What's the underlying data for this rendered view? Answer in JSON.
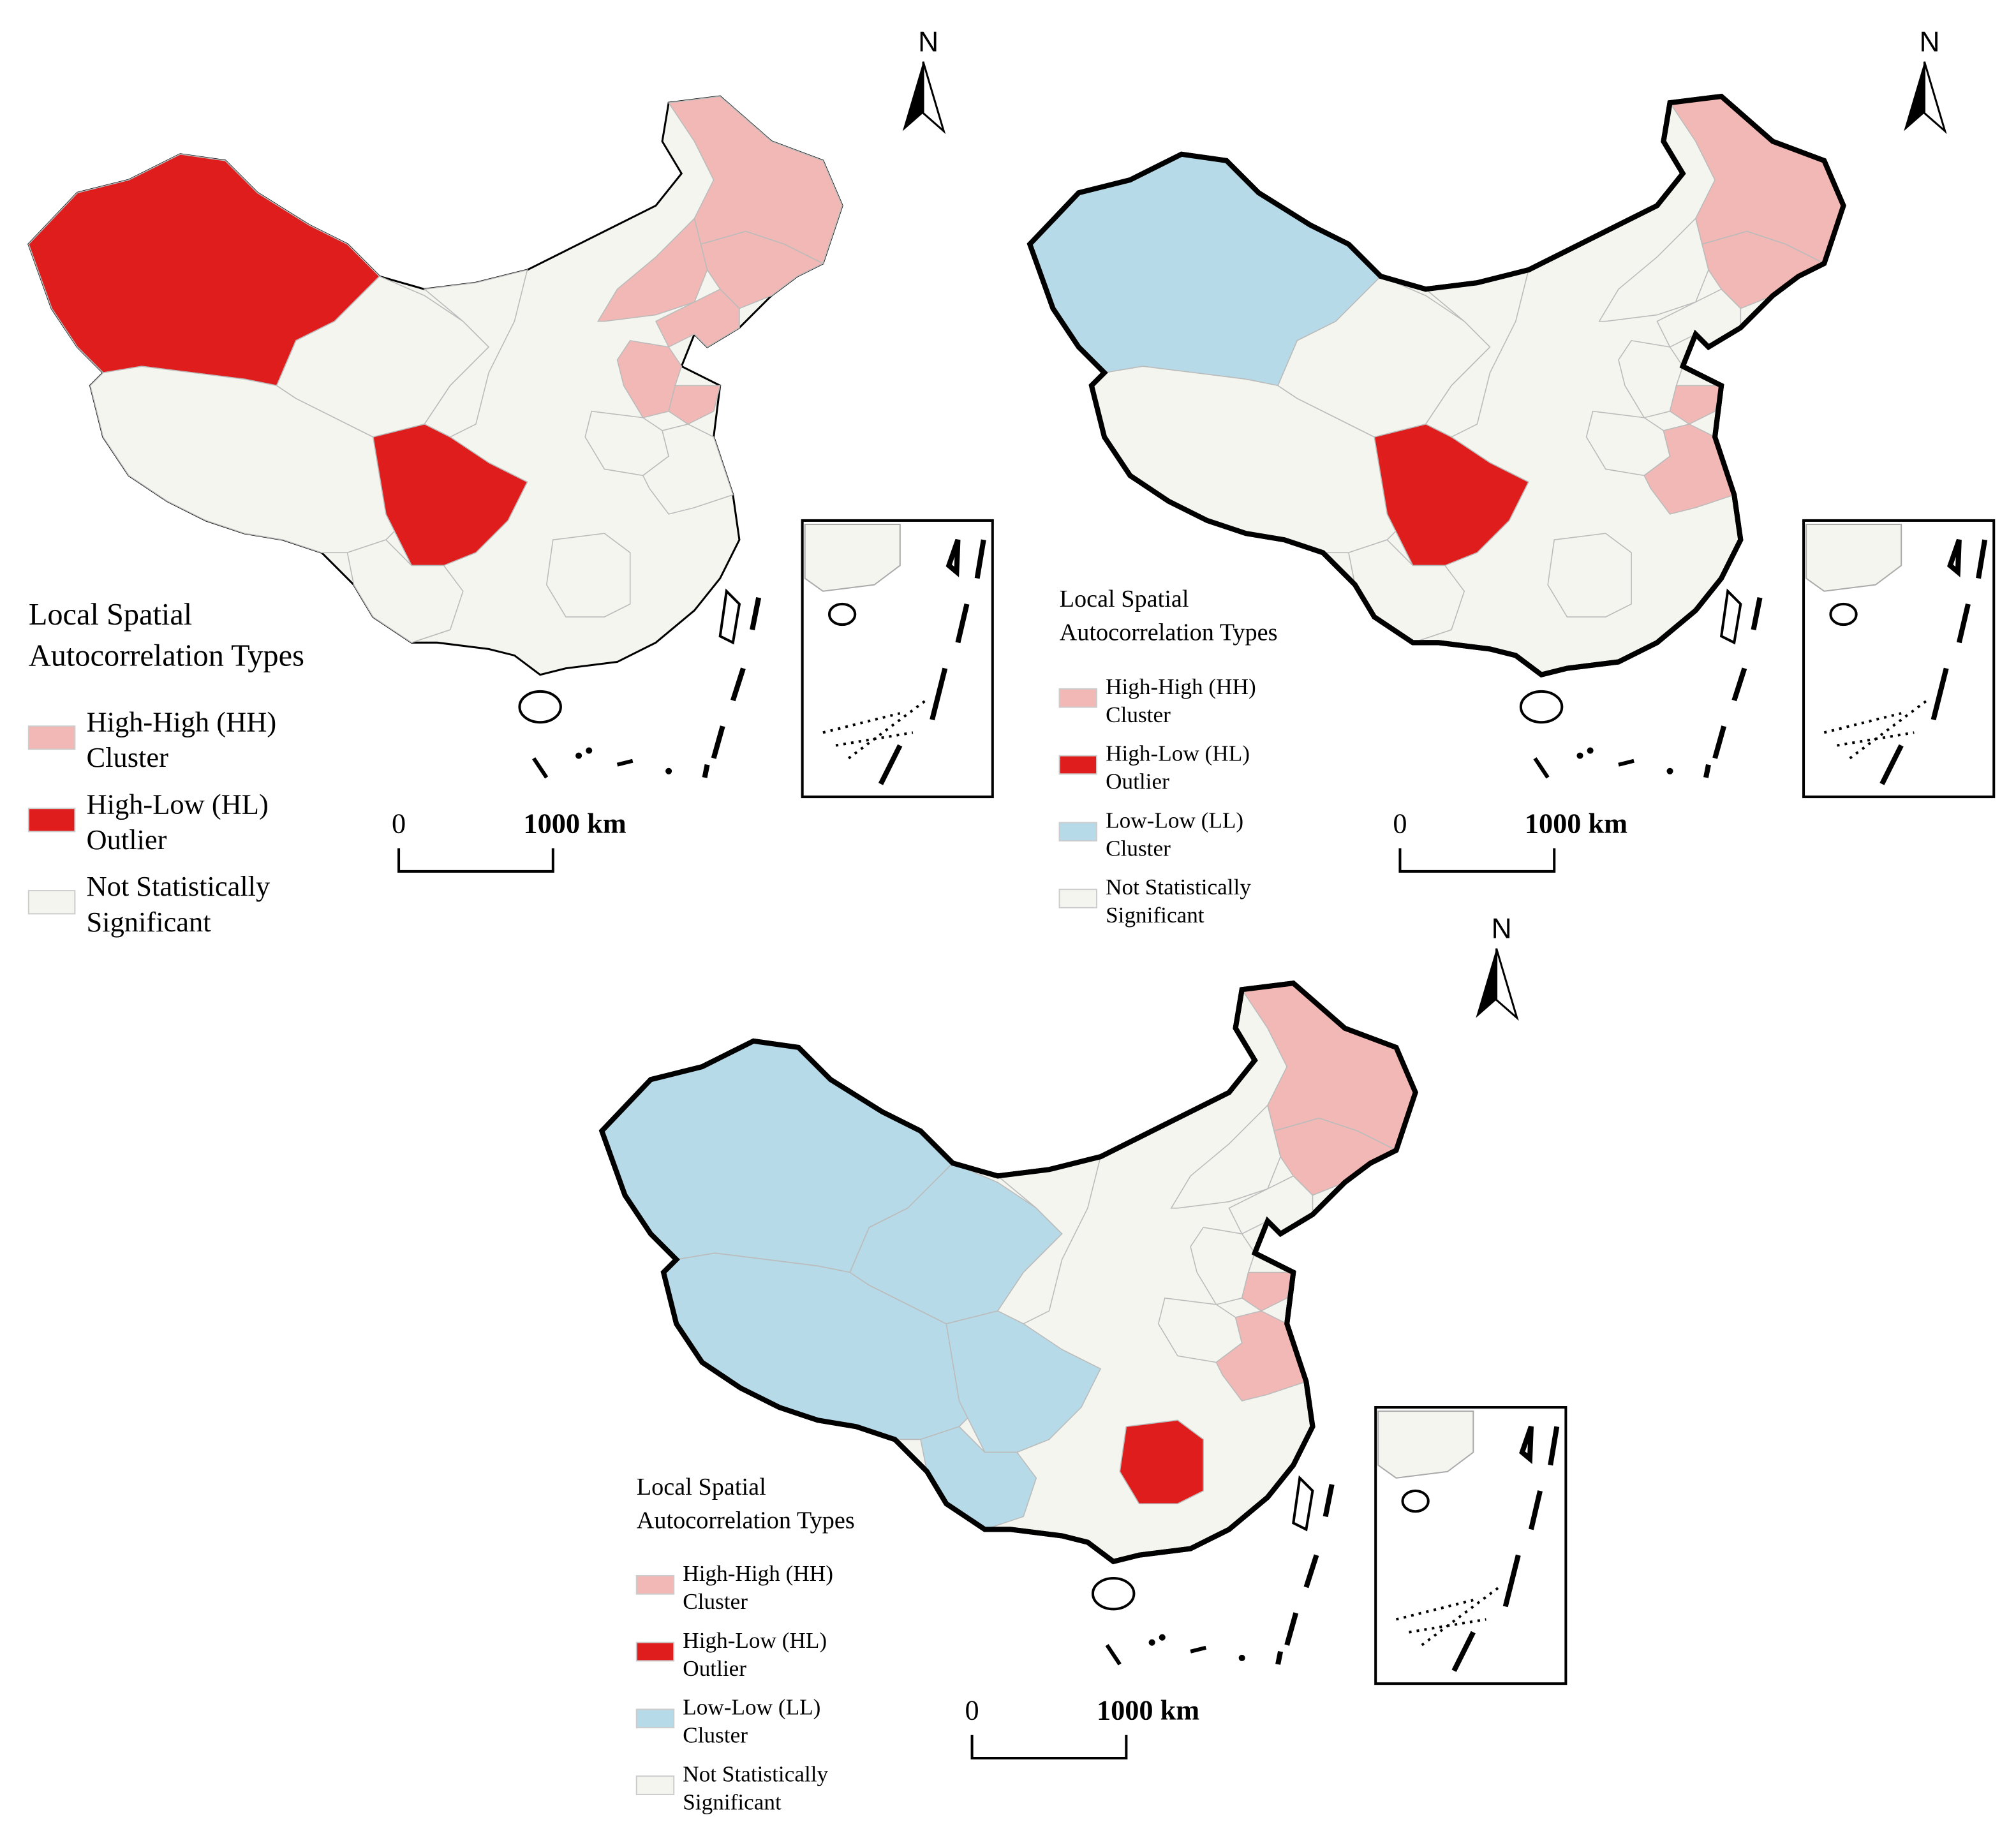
{
  "maps": [
    {
      "north": "N",
      "scale_labels": [
        "0",
        "1000 km"
      ],
      "legend_title": [
        "Local Spatial",
        "Autocorrelation Types"
      ],
      "legend": [
        {
          "label": [
            "High-High (HH)",
            "Cluster"
          ],
          "color": "#f2b8b5"
        },
        {
          "label": [
            "High-Low (HL)",
            "Outlier"
          ],
          "color": "#e01d1d"
        },
        {
          "label": [
            "Not Statistically",
            "Significant"
          ],
          "color": "#f5f5f0"
        }
      ]
    },
    {
      "north": "N",
      "scale_labels": [
        "0",
        "1000 km"
      ],
      "legend_title": [
        "Local Spatial",
        "Autocorrelation Types"
      ],
      "legend": [
        {
          "label": [
            "High-High (HH)",
            "Cluster"
          ],
          "color": "#f2b8b5"
        },
        {
          "label": [
            "High-Low (HL)",
            "Outlier"
          ],
          "color": "#e01d1d"
        },
        {
          "label": [
            "Low-Low (LL)",
            "Cluster"
          ],
          "color": "#b7dae8"
        },
        {
          "label": [
            "Not Statistically",
            "Significant"
          ],
          "color": "#f5f5f0"
        }
      ]
    },
    {
      "north": "N",
      "scale_labels": [
        "0",
        "1000 km"
      ],
      "legend_title": [
        "Local Spatial",
        "Autocorrelation Types"
      ],
      "legend": [
        {
          "label": [
            "High-High (HH)",
            "Cluster"
          ],
          "color": "#f2b8b5"
        },
        {
          "label": [
            "High-Low (HL)",
            "Outlier"
          ],
          "color": "#e01d1d"
        },
        {
          "label": [
            "Low-Low (LL)",
            "Cluster"
          ],
          "color": "#b7dae8"
        },
        {
          "label": [
            "Not Statistically",
            "Significant"
          ],
          "color": "#f5f5f0"
        }
      ]
    }
  ]
}
